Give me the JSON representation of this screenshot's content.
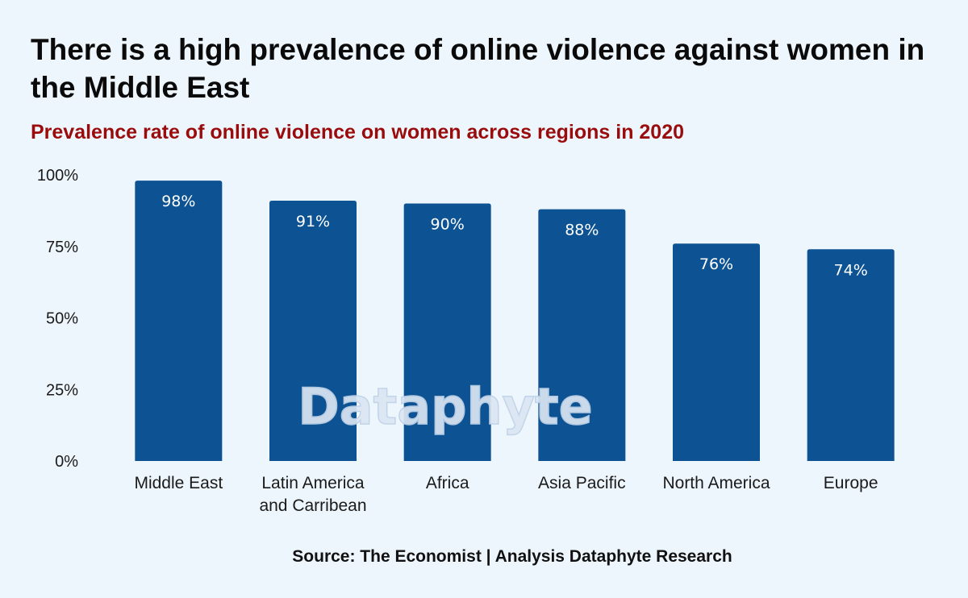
{
  "title": "There is a high prevalence of online violence against women in the Middle East",
  "subtitle": "Prevalence rate of online violence on women across regions in 2020",
  "source": "Source: The Economist | Analysis Dataphyte Research",
  "watermark": "Dataphyte",
  "colors": {
    "background": "#eef6fd",
    "bar": "#0d5394",
    "title": "#0a0a0a",
    "subtitle": "#9a0c0c"
  },
  "chart_data": {
    "type": "bar",
    "title": "Prevalence rate of online violence on women across regions in 2020",
    "xlabel": "",
    "ylabel": "",
    "categories": [
      [
        "Middle East"
      ],
      [
        "Latin America",
        "and Carribean"
      ],
      [
        "Africa"
      ],
      [
        "Asia Pacific"
      ],
      [
        "North America"
      ],
      [
        "Europe"
      ]
    ],
    "values": [
      98,
      91,
      90,
      88,
      76,
      74
    ],
    "value_labels": [
      "98%",
      "91%",
      "90%",
      "88%",
      "76%",
      "74%"
    ],
    "ylim": [
      0,
      100
    ],
    "yticks": [
      0,
      25,
      50,
      75,
      100
    ],
    "ytick_labels": [
      "0%",
      "25%",
      "50%",
      "75%",
      "100%"
    ],
    "grid": false,
    "legend": "none"
  }
}
